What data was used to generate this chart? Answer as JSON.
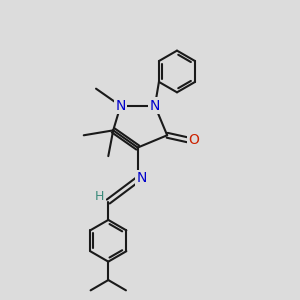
{
  "bg_color": "#dcdcdc",
  "bond_color": "#1a1a1a",
  "bond_lw": 1.5,
  "atom_colors": {
    "N": "#0000cc",
    "O": "#cc2200",
    "H": "#3a8a7a"
  },
  "font_size_atom": 10,
  "fig_size": [
    3.0,
    3.0
  ],
  "dpi": 100
}
